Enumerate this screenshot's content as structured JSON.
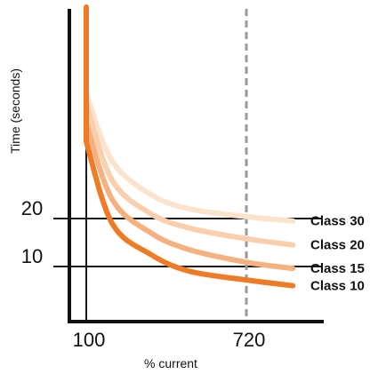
{
  "chart_data": {
    "type": "line",
    "xlabel": "% current",
    "ylabel": "Time (seconds)",
    "x_ticks": [
      "100",
      "720"
    ],
    "y_ticks": [
      "20",
      "10"
    ],
    "reference_line_x": 720,
    "series": [
      {
        "name": "Class 30",
        "color": "#FCE3CC",
        "x": [
          100,
          200,
          350,
          500,
          720,
          900
        ],
        "y": [
          46,
          32,
          25,
          22,
          20.4,
          19.5
        ]
      },
      {
        "name": "Class 20",
        "color": "#FACFAE",
        "x": [
          100,
          200,
          350,
          500,
          720,
          900
        ],
        "y": [
          44,
          28,
          21,
          18,
          15.8,
          14.5
        ]
      },
      {
        "name": "Class 15",
        "color": "#F6B180",
        "x": [
          100,
          200,
          350,
          500,
          720,
          900
        ],
        "y": [
          40,
          24,
          17,
          13.5,
          10.9,
          9.6
        ]
      },
      {
        "name": "Class 10",
        "color": "#EF7B26",
        "x": [
          100,
          200,
          350,
          500,
          720,
          900
        ],
        "y": [
          36,
          19,
          12.5,
          9,
          7.2,
          6.0
        ]
      }
    ]
  }
}
